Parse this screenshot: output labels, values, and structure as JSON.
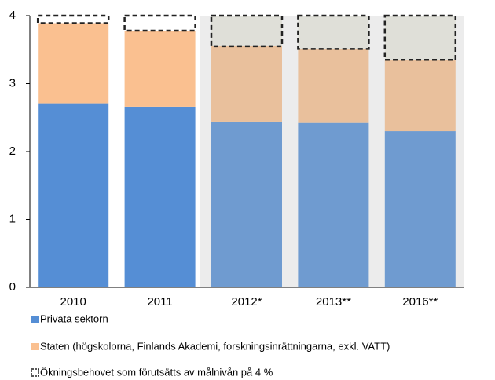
{
  "chart_data": {
    "type": "bar",
    "stacked": true,
    "categories": [
      "2010",
      "2011",
      "2012*",
      "2013**",
      "2016**"
    ],
    "series": [
      {
        "name": "Privata sektorn",
        "colors": [
          "#558ed5",
          "#558ed5",
          "#6f9bd0",
          "#6f9bd0",
          "#6f9bd0"
        ],
        "values": [
          2.71,
          2.66,
          2.44,
          2.42,
          2.3
        ]
      },
      {
        "name": "Staten (högskolorna, Finlands Akademi, forskningsinrättningarna, exkl. VATT)",
        "colors": [
          "#fac090",
          "#fac090",
          "#e9c09c",
          "#e9c09c",
          "#e9c09c"
        ],
        "values": [
          1.18,
          1.12,
          1.11,
          1.09,
          1.05
        ]
      },
      {
        "name": "Ökningsbehovet som förutsätts av målnivån på 4 %",
        "colors": [
          "#ffffff",
          "#ffffff",
          "#dfdfd8",
          "#dfdfd8",
          "#dfdfd8"
        ],
        "values": [
          0.11,
          0.22,
          0.45,
          0.49,
          0.65
        ],
        "dashed": true
      }
    ],
    "ylim": [
      0,
      4
    ],
    "yticks": [
      0,
      1,
      2,
      3,
      4
    ]
  }
}
